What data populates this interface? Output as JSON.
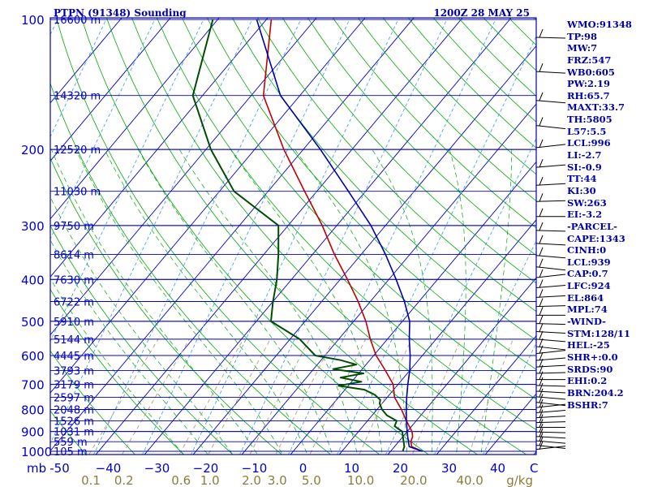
{
  "header": {
    "station": "PTPN (91348) Sounding",
    "time": "1200Z 28 MAY 25"
  },
  "chart_data": {
    "type": "skew-t log-p sounding",
    "pressure_axis": {
      "unit": "mb",
      "range": [
        1000,
        100
      ],
      "scale": "log",
      "ticks": [
        100,
        200,
        300,
        400,
        500,
        600,
        700,
        800,
        900,
        1000
      ]
    },
    "height_labels": [
      {
        "p": 100,
        "label": "16600 m"
      },
      {
        "p": 150,
        "label": "14320 m"
      },
      {
        "p": 200,
        "label": "12520 m"
      },
      {
        "p": 250,
        "label": "11030 m"
      },
      {
        "p": 300,
        "label": "9750 m"
      },
      {
        "p": 350,
        "label": "8614 m"
      },
      {
        "p": 400,
        "label": "7630 m"
      },
      {
        "p": 450,
        "label": "6722 m"
      },
      {
        "p": 500,
        "label": "5910 m"
      },
      {
        "p": 550,
        "label": "5144 m"
      },
      {
        "p": 600,
        "label": "4445 m"
      },
      {
        "p": 650,
        "label": "3793 m"
      },
      {
        "p": 700,
        "label": "3179 m"
      },
      {
        "p": 750,
        "label": "2597 m"
      },
      {
        "p": 800,
        "label": "2048 m"
      },
      {
        "p": 850,
        "label": "1526 m"
      },
      {
        "p": 900,
        "label": "1031 m"
      },
      {
        "p": 950,
        "label": "559 m"
      },
      {
        "p": 1000,
        "label": "105 m"
      }
    ],
    "temperature_axis": {
      "unit": "C",
      "ticks": [
        {
          "v": -50,
          "label": "-50"
        },
        {
          "v": -40,
          "label": "−40"
        },
        {
          "v": -30,
          "label": "−30"
        },
        {
          "v": -20,
          "label": "−20"
        },
        {
          "v": -10,
          "label": "−10"
        },
        {
          "v": 0,
          "label": "0"
        },
        {
          "v": 10,
          "label": "10"
        },
        {
          "v": 20,
          "label": "20"
        },
        {
          "v": 30,
          "label": "30"
        },
        {
          "v": 40,
          "label": "40"
        }
      ],
      "corner_left": "mb",
      "corner_right": "C"
    },
    "mixing_ratio_axis": {
      "unit": "g/kg",
      "values": [
        0.1,
        0.2,
        0.6,
        1.0,
        2.0,
        3.0,
        5.0,
        10.0,
        20.0,
        40.0
      ],
      "labels": [
        "0.1",
        "0.2",
        "0.6",
        "1.0",
        "2.0",
        "3.0",
        "5.0",
        "10.0",
        "20.0",
        "40.0"
      ]
    },
    "series": [
      {
        "key": "temperature",
        "color": "#c00000",
        "points": [
          [
            1000,
            26.5
          ],
          [
            975,
            23.5
          ],
          [
            950,
            22.5
          ],
          [
            925,
            22.0
          ],
          [
            900,
            21.0
          ],
          [
            875,
            19.5
          ],
          [
            850,
            18.0
          ],
          [
            800,
            15.0
          ],
          [
            750,
            11.5
          ],
          [
            700,
            9.0
          ],
          [
            650,
            5.0
          ],
          [
            600,
            0.5
          ],
          [
            550,
            -3.5
          ],
          [
            500,
            -7.5
          ],
          [
            450,
            -12.5
          ],
          [
            400,
            -18.5
          ],
          [
            350,
            -25.5
          ],
          [
            300,
            -33.0
          ],
          [
            250,
            -42.5
          ],
          [
            200,
            -54.0
          ],
          [
            150,
            -67.5
          ],
          [
            100,
            -79.0
          ]
        ]
      },
      {
        "key": "dewpoint",
        "color": "#004d00",
        "points": [
          [
            1000,
            22.5
          ],
          [
            975,
            22.0
          ],
          [
            950,
            21.0
          ],
          [
            925,
            20.0
          ],
          [
            900,
            19.0
          ],
          [
            875,
            16.5
          ],
          [
            850,
            16.0
          ],
          [
            825,
            13.0
          ],
          [
            800,
            11.0
          ],
          [
            775,
            9.5
          ],
          [
            760,
            9.0
          ],
          [
            740,
            7.0
          ],
          [
            720,
            4.0
          ],
          [
            705,
            -2.0
          ],
          [
            690,
            2.0
          ],
          [
            675,
            -3.0
          ],
          [
            660,
            1.0
          ],
          [
            645,
            -6.0
          ],
          [
            630,
            -2.0
          ],
          [
            615,
            -6.0
          ],
          [
            600,
            -12.0
          ],
          [
            550,
            -18.0
          ],
          [
            500,
            -27.0
          ],
          [
            450,
            -30.0
          ],
          [
            400,
            -33.0
          ],
          [
            350,
            -37.0
          ],
          [
            300,
            -42.0
          ],
          [
            250,
            -57.0
          ],
          [
            200,
            -69.0
          ],
          [
            150,
            -82.0
          ],
          [
            100,
            -91.0
          ]
        ]
      },
      {
        "key": "parcel",
        "color": "#0000aa",
        "points": [
          [
            1000,
            26.5
          ],
          [
            975,
            23.0
          ],
          [
            950,
            22.0
          ],
          [
            925,
            21.0
          ],
          [
            900,
            20.0
          ],
          [
            850,
            18.0
          ],
          [
            800,
            16.0
          ],
          [
            750,
            14.0
          ],
          [
            700,
            12.0
          ],
          [
            650,
            10.0
          ],
          [
            600,
            7.5
          ],
          [
            550,
            4.5
          ],
          [
            500,
            1.5
          ],
          [
            450,
            -3.0
          ],
          [
            400,
            -8.5
          ],
          [
            350,
            -15.0
          ],
          [
            300,
            -23.0
          ],
          [
            250,
            -33.5
          ],
          [
            200,
            -46.5
          ],
          [
            150,
            -64.0
          ],
          [
            100,
            -82.0
          ]
        ]
      }
    ],
    "wind_barbs_right_edge": true
  },
  "indices": [
    "WMO:91348",
    "TP:98",
    "MW:7",
    "FRZ:547",
    "WB0:605",
    "PW:2.19",
    "RH:65.7",
    "MAXT:33.7",
    "TH:5805",
    "L57:5.5",
    "LCL:996",
    "LI:-2.7",
    "SI:-0.9",
    "TT:44",
    "KI:30",
    "SW:263",
    "EI:-3.2",
    "-PARCEL-",
    "CAPE:1343",
    "CINH:0",
    "LCL:939",
    "CAP:0.7",
    "LFC:924",
    "EL:864",
    "MPL:74",
    "-WIND-",
    "STM:128/11",
    "HEL:-25",
    "SHR+:0.0",
    "SRDS:90",
    "EHI:0.2",
    "BRN:204.2",
    "BSHR:7"
  ],
  "colors": {
    "isobar": "#0000cc",
    "isotherm": "#0000cc",
    "dry_adiabat": "#00aa00",
    "moist_adiabat": "#00aa00",
    "mixing_ratio": "#b8a070",
    "frost_line": "#3399ff"
  }
}
